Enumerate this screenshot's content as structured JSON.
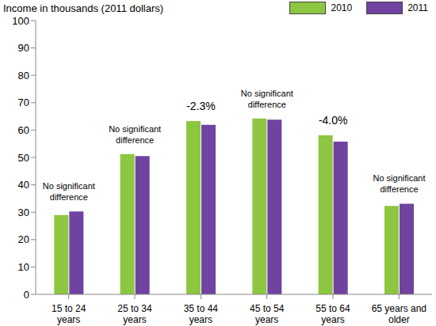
{
  "chart_data": {
    "type": "bar",
    "ylabel": "Income in thousands (2011 dollars)",
    "categories": [
      "15 to 24 years",
      "25 to 34 years",
      "35 to 44 years",
      "45 to 54 years",
      "55 to 64 years",
      "65 years and older"
    ],
    "series": [
      {
        "name": "2010",
        "color": "#8dc640",
        "values": [
          29.0,
          51.2,
          63.3,
          64.2,
          58.1,
          32.3
        ]
      },
      {
        "name": "2011",
        "color": "#7043a0",
        "values": [
          30.3,
          50.5,
          61.9,
          63.8,
          55.8,
          33.1
        ]
      }
    ],
    "annotations": [
      "No significant difference",
      "No significant difference",
      "-2.3%",
      "No significant difference",
      "-4.0%",
      "No significant difference"
    ],
    "ylim": [
      0,
      100
    ],
    "yticks": [
      0,
      10,
      20,
      30,
      40,
      50,
      60,
      70,
      80,
      90,
      100
    ],
    "grid": false,
    "legend": "top-right"
  }
}
